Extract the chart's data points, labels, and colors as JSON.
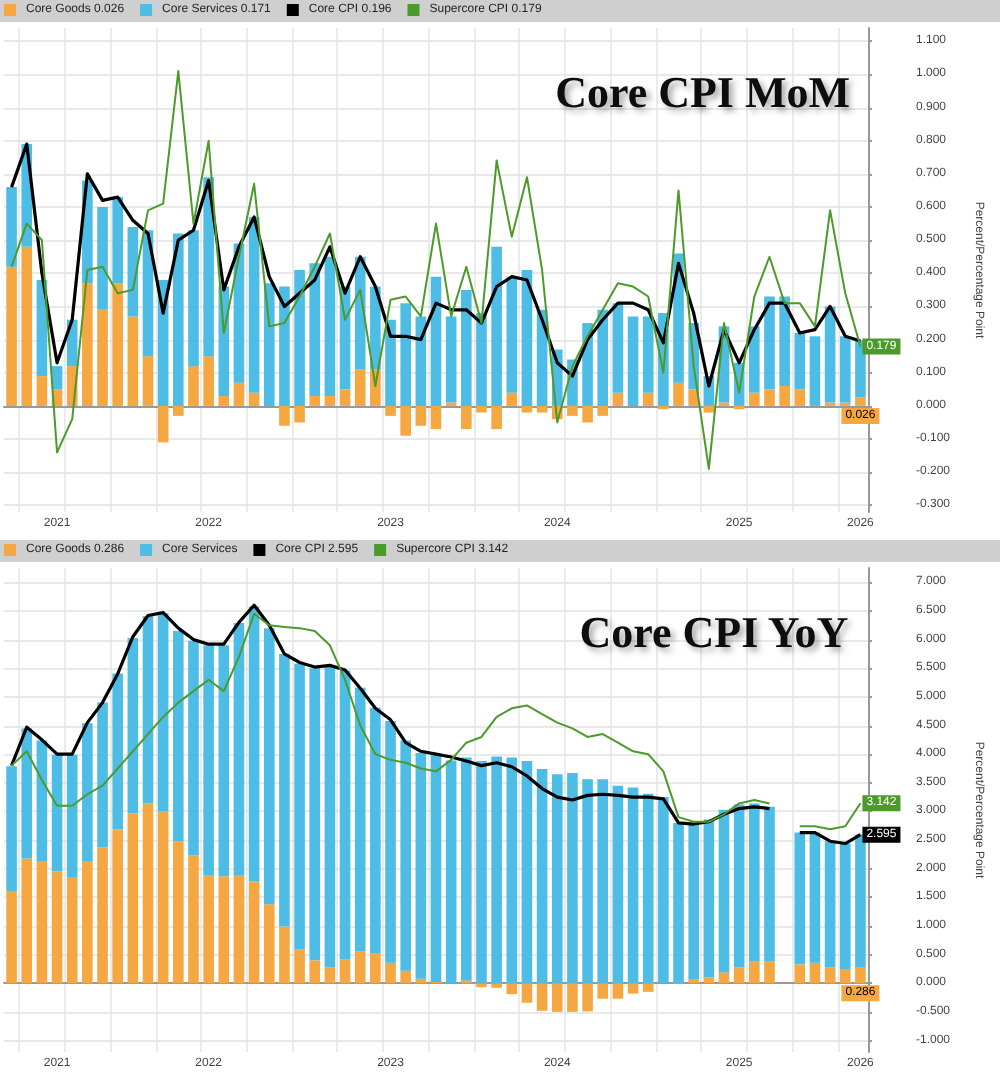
{
  "chart_data": [
    {
      "type": "bar",
      "title": "Core CPI MoM",
      "ylabel": "Percent/Percentage Point",
      "stacked": true,
      "grid": true,
      "legend": "top left",
      "marker": "none",
      "categories": [
        null,
        null,
        null,
        "2021",
        null,
        null,
        null,
        null,
        null,
        null,
        null,
        null,
        null,
        "2022",
        null,
        null,
        null,
        null,
        null,
        null,
        null,
        null,
        null,
        null,
        null,
        "2023",
        null,
        null,
        null,
        null,
        null,
        null,
        null,
        null,
        null,
        null,
        "2024",
        null,
        null,
        null,
        null,
        null,
        null,
        null,
        null,
        null,
        null,
        null,
        "2025",
        null,
        null,
        null,
        null,
        null,
        null,
        null,
        "2026"
      ],
      "ylim": [
        -0.32,
        1.14
      ],
      "yticks": [
        {
          "value": -0.3,
          "label": "-0.300"
        },
        {
          "value": -0.2,
          "label": "-0.200"
        },
        {
          "value": -0.1,
          "label": "-0.100"
        },
        {
          "value": 0,
          "label": "0.000"
        },
        {
          "value": 0.1,
          "label": "0.100"
        },
        {
          "value": 0.2,
          "label": "0.200"
        },
        {
          "value": 0.3,
          "label": "0.300"
        },
        {
          "value": 0.4,
          "label": "0.400"
        },
        {
          "value": 0.5,
          "label": "0.500"
        },
        {
          "value": 0.6,
          "label": "0.600"
        },
        {
          "value": 0.7,
          "label": "0.700"
        },
        {
          "value": 0.8,
          "label": "0.800"
        },
        {
          "value": 0.9,
          "label": "0.900"
        },
        {
          "value": 1.0,
          "label": "1.000"
        },
        {
          "value": 1.1,
          "label": "1.100"
        }
      ],
      "series": [
        {
          "name": "Core Goods 0.026",
          "color": "#f5a742",
          "values": [
            0.42,
            0.48,
            0.09,
            0.05,
            0.12,
            0.37,
            0.29,
            0.37,
            0.27,
            0.15,
            -0.11,
            -0.03,
            0.12,
            0.15,
            0.03,
            0.07,
            0.04,
            0.0,
            -0.06,
            -0.05,
            0.03,
            0.03,
            0.05,
            0.11,
            0.11,
            -0.03,
            -0.09,
            -0.06,
            -0.07,
            0.01,
            -0.07,
            -0.02,
            -0.07,
            0.04,
            -0.02,
            -0.02,
            -0.04,
            -0.03,
            -0.05,
            -0.03,
            0.04,
            0.0,
            0.04,
            -0.01,
            0.07,
            0.05,
            -0.02,
            0.01,
            -0.01,
            0.04,
            0.05,
            0.06,
            0.05,
            0.0,
            0.01,
            0.01,
            0.026
          ],
          "value_labels": [
            null,
            null,
            null,
            null,
            null,
            null,
            null,
            null,
            null,
            null,
            null,
            null,
            null,
            null,
            null,
            null,
            null,
            null,
            null,
            null,
            null,
            null,
            null,
            null,
            null,
            null,
            null,
            null,
            null,
            null,
            null,
            null,
            null,
            null,
            null,
            null,
            null,
            null,
            null,
            null,
            null,
            null,
            null,
            null,
            null,
            null,
            null,
            null,
            null,
            null,
            null,
            null,
            null,
            null,
            null,
            null,
            "0.026"
          ]
        },
        {
          "name": "Core Services 0.171",
          "color": "#4dbde6",
          "values": [
            0.24,
            0.31,
            0.29,
            0.07,
            0.14,
            0.31,
            0.31,
            0.26,
            0.27,
            0.38,
            0.38,
            0.52,
            0.41,
            0.54,
            0.33,
            0.42,
            0.53,
            0.37,
            0.36,
            0.41,
            0.4,
            0.42,
            0.31,
            0.34,
            0.25,
            0.26,
            0.31,
            0.27,
            0.39,
            0.26,
            0.35,
            0.28,
            0.48,
            0.35,
            0.41,
            0.29,
            0.17,
            0.14,
            0.25,
            0.29,
            0.27,
            0.27,
            0.23,
            0.28,
            0.39,
            0.2,
            0.09,
            0.23,
            0.13,
            0.2,
            0.28,
            0.27,
            0.17,
            0.21,
            0.29,
            0.2,
            0.171
          ]
        },
        {
          "type": "line",
          "name": "Core CPI 0.196",
          "color": "#000000",
          "values": [
            0.66,
            0.79,
            0.4,
            0.13,
            0.26,
            0.7,
            0.62,
            0.63,
            0.56,
            0.52,
            0.28,
            0.5,
            0.53,
            0.68,
            0.35,
            0.48,
            0.57,
            0.39,
            0.3,
            0.34,
            0.38,
            0.48,
            0.34,
            0.45,
            0.36,
            0.21,
            0.21,
            0.2,
            0.31,
            0.29,
            0.29,
            0.25,
            0.36,
            0.39,
            0.38,
            0.26,
            0.13,
            0.09,
            0.2,
            0.26,
            0.31,
            0.31,
            0.29,
            0.19,
            0.43,
            0.28,
            0.06,
            0.23,
            0.13,
            0.23,
            0.31,
            0.31,
            0.22,
            0.23,
            0.3,
            0.21,
            0.196
          ]
        },
        {
          "type": "line",
          "name": "Supercore CPI 0.179",
          "color": "#4c9a2a",
          "values": [
            0.42,
            0.55,
            0.5,
            -0.14,
            -0.04,
            0.41,
            0.42,
            0.34,
            0.35,
            0.59,
            0.61,
            1.01,
            0.55,
            0.8,
            0.22,
            0.45,
            0.67,
            0.24,
            0.25,
            0.33,
            0.42,
            0.52,
            0.26,
            0.35,
            0.06,
            0.32,
            0.33,
            0.27,
            0.55,
            0.27,
            0.42,
            0.25,
            0.74,
            0.51,
            0.69,
            0.41,
            -0.05,
            0.12,
            0.21,
            0.29,
            0.37,
            0.36,
            0.33,
            0.1,
            0.65,
            0.12,
            -0.19,
            0.25,
            0.04,
            0.33,
            0.45,
            0.31,
            0.31,
            0.24,
            0.59,
            0.34,
            0.179
          ],
          "value_labels": [
            null,
            null,
            null,
            null,
            null,
            null,
            null,
            null,
            null,
            null,
            null,
            null,
            null,
            null,
            null,
            null,
            null,
            null,
            null,
            null,
            null,
            null,
            null,
            null,
            null,
            null,
            null,
            null,
            null,
            null,
            null,
            null,
            null,
            null,
            null,
            null,
            null,
            null,
            null,
            null,
            null,
            null,
            null,
            null,
            null,
            null,
            null,
            null,
            null,
            null,
            null,
            null,
            null,
            null,
            null,
            null,
            "0.179"
          ]
        }
      ]
    },
    {
      "type": "bar",
      "title": "Core CPI YoY",
      "ylabel": "Percent/Percentage Point",
      "stacked": true,
      "grid": true,
      "legend": "top left",
      "marker": "none",
      "categories": [
        null,
        null,
        null,
        "2021",
        null,
        null,
        null,
        null,
        null,
        null,
        null,
        null,
        null,
        "2022",
        null,
        null,
        null,
        null,
        null,
        null,
        null,
        null,
        null,
        null,
        null,
        "2023",
        null,
        null,
        null,
        null,
        null,
        null,
        null,
        null,
        null,
        null,
        "2024",
        null,
        null,
        null,
        null,
        null,
        null,
        null,
        null,
        null,
        null,
        null,
        "2025",
        null,
        null,
        null,
        null,
        null,
        null,
        null,
        "2026"
      ],
      "ylim": [
        -1.2,
        7.25
      ],
      "yticks": [
        {
          "value": -1,
          "label": "-1.000"
        },
        {
          "value": -0.5,
          "label": "-0.500"
        },
        {
          "value": 0,
          "label": "0.000"
        },
        {
          "value": 0.5,
          "label": "0.500"
        },
        {
          "value": 1,
          "label": "1.000"
        },
        {
          "value": 1.5,
          "label": "1.500"
        },
        {
          "value": 2,
          "label": "2.000"
        },
        {
          "value": 2.5,
          "label": "2.500"
        },
        {
          "value": 3,
          "label": "3.000"
        },
        {
          "value": 3.5,
          "label": "3.500"
        },
        {
          "value": 4,
          "label": "4.000"
        },
        {
          "value": 4.5,
          "label": "4.500"
        },
        {
          "value": 5,
          "label": "5.000"
        },
        {
          "value": 5.5,
          "label": "5.500"
        },
        {
          "value": 6,
          "label": "6.000"
        },
        {
          "value": 6.5,
          "label": "6.500"
        },
        {
          "value": 7,
          "label": "7.000"
        }
      ],
      "series": [
        {
          "name": "Core Goods 0.286",
          "color": "#f5a742",
          "values": [
            1.61,
            2.18,
            2.12,
            1.95,
            1.84,
            2.12,
            2.37,
            2.69,
            2.97,
            3.14,
            3.0,
            2.48,
            2.23,
            1.89,
            1.87,
            1.89,
            1.78,
            1.38,
            0.99,
            0.59,
            0.4,
            0.28,
            0.42,
            0.56,
            0.53,
            0.36,
            0.22,
            0.08,
            0.02,
            null,
            0.05,
            -0.07,
            -0.08,
            -0.19,
            -0.34,
            -0.48,
            -0.5,
            -0.5,
            -0.49,
            -0.27,
            -0.27,
            -0.18,
            -0.15,
            0.0,
            -0.01,
            0.06,
            0.1,
            0.19,
            0.28,
            0.39,
            0.39,
            null,
            0.33,
            0.36,
            0.28,
            0.25,
            0.286
          ],
          "value_labels": [
            null,
            null,
            null,
            null,
            null,
            null,
            null,
            null,
            null,
            null,
            null,
            null,
            null,
            null,
            null,
            null,
            null,
            null,
            null,
            null,
            null,
            null,
            null,
            null,
            null,
            null,
            null,
            null,
            null,
            null,
            null,
            null,
            null,
            null,
            null,
            null,
            null,
            null,
            null,
            null,
            null,
            null,
            null,
            null,
            null,
            null,
            null,
            null,
            null,
            null,
            null,
            null,
            null,
            null,
            null,
            null,
            "0.286"
          ]
        },
        {
          "name": "Core Services",
          "color": "#4dbde6",
          "values": [
            2.18,
            2.27,
            2.12,
            2.04,
            2.15,
            2.42,
            2.53,
            2.72,
            3.06,
            3.27,
            3.46,
            3.67,
            3.75,
            4.01,
            4.03,
            4.4,
            4.8,
            4.82,
            4.76,
            4.99,
            5.1,
            5.24,
            5.04,
            4.6,
            4.28,
            4.22,
            4.02,
            3.94,
            3.97,
            3.89,
            3.89,
            3.88,
            3.96,
            3.94,
            3.88,
            3.74,
            3.65,
            3.67,
            3.56,
            3.56,
            3.45,
            3.42,
            3.31,
            3.25,
            2.8,
            2.74,
            2.76,
            2.84,
            2.84,
            2.75,
            2.69,
            null,
            2.3,
            2.27,
            2.2,
            2.19,
            2.31
          ]
        },
        {
          "type": "line",
          "name": "Core CPI 2.595",
          "color": "#000000",
          "values": [
            3.8,
            4.47,
            4.25,
            4.0,
            4.0,
            4.55,
            4.9,
            5.4,
            6.05,
            6.42,
            6.47,
            6.2,
            6.0,
            5.92,
            5.92,
            6.3,
            6.6,
            6.25,
            5.75,
            5.6,
            5.52,
            5.55,
            5.47,
            5.15,
            4.8,
            4.6,
            4.2,
            4.05,
            4.0,
            3.95,
            3.88,
            3.8,
            3.85,
            3.78,
            3.62,
            3.4,
            3.25,
            3.2,
            3.28,
            3.3,
            3.28,
            3.25,
            3.25,
            3.22,
            2.8,
            2.78,
            2.82,
            2.95,
            3.05,
            3.08,
            3.05,
            null,
            2.63,
            2.63,
            2.48,
            2.44,
            2.595
          ],
          "value_labels": [
            null,
            null,
            null,
            null,
            null,
            null,
            null,
            null,
            null,
            null,
            null,
            null,
            null,
            null,
            null,
            null,
            null,
            null,
            null,
            null,
            null,
            null,
            null,
            null,
            null,
            null,
            null,
            null,
            null,
            null,
            null,
            null,
            null,
            null,
            null,
            null,
            null,
            null,
            null,
            null,
            null,
            null,
            null,
            null,
            null,
            null,
            null,
            null,
            null,
            null,
            null,
            null,
            null,
            null,
            null,
            null,
            "2.595"
          ]
        },
        {
          "type": "line",
          "name": "Supercore CPI 3.142",
          "color": "#4c9a2a",
          "values": [
            3.8,
            4.05,
            3.55,
            3.1,
            3.1,
            3.3,
            3.45,
            3.75,
            4.05,
            4.35,
            4.65,
            4.9,
            5.1,
            5.3,
            5.1,
            5.7,
            6.45,
            6.25,
            6.22,
            6.2,
            6.15,
            5.9,
            5.3,
            4.5,
            4.0,
            3.9,
            3.85,
            3.75,
            3.7,
            3.9,
            4.2,
            4.3,
            4.65,
            4.8,
            4.85,
            4.7,
            4.55,
            4.45,
            4.3,
            4.35,
            4.2,
            4.05,
            4.0,
            3.7,
            2.9,
            2.82,
            2.82,
            2.95,
            3.14,
            3.2,
            3.14,
            null,
            2.74,
            2.74,
            2.69,
            2.74,
            3.142
          ],
          "value_labels": [
            null,
            null,
            null,
            null,
            null,
            null,
            null,
            null,
            null,
            null,
            null,
            null,
            null,
            null,
            null,
            null,
            null,
            null,
            null,
            null,
            null,
            null,
            null,
            null,
            null,
            null,
            null,
            null,
            null,
            null,
            null,
            null,
            null,
            null,
            null,
            null,
            null,
            null,
            null,
            null,
            null,
            null,
            null,
            null,
            null,
            null,
            null,
            null,
            null,
            null,
            null,
            null,
            null,
            null,
            null,
            null,
            "3.142"
          ]
        }
      ]
    }
  ]
}
